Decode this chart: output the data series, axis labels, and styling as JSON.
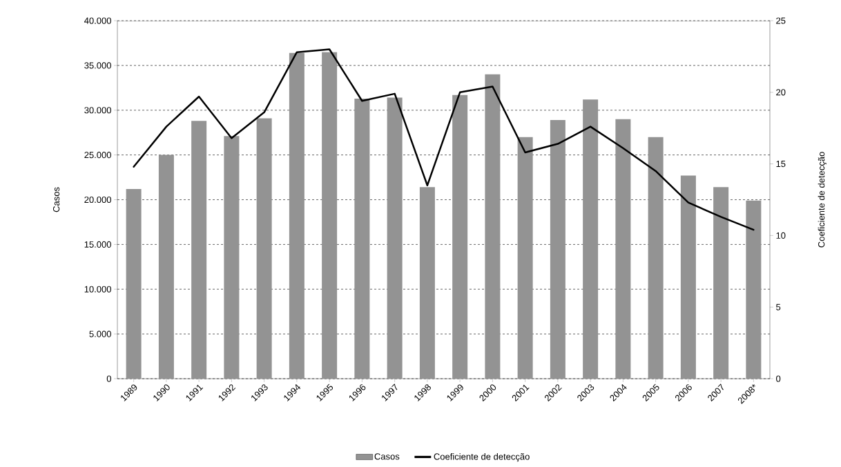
{
  "chart_data": {
    "type": "bar",
    "ylabel": "Casos",
    "y2label": "Coeficiente de detecção",
    "categories": [
      "1989",
      "1990",
      "1991",
      "1992",
      "1993",
      "1994",
      "1995",
      "1996",
      "1997",
      "1998",
      "1999",
      "2000",
      "2001",
      "2002",
      "2003",
      "2004",
      "2005",
      "2006",
      "2007",
      "2008*"
    ],
    "series": [
      {
        "name": "Casos",
        "color": "#939393",
        "values": [
          21200,
          25000,
          28800,
          27100,
          29100,
          36400,
          36500,
          31300,
          31400,
          21400,
          31700,
          34000,
          27000,
          28900,
          31200,
          29000,
          27000,
          22700,
          21400,
          19900
        ]
      },
      {
        "name": "Coeficiente de detecção",
        "type": "line",
        "axis": "y2",
        "color": "#000000",
        "values": [
          14.8,
          17.6,
          19.7,
          16.8,
          18.6,
          22.8,
          23.0,
          19.4,
          19.9,
          13.5,
          20.0,
          20.4,
          15.8,
          16.4,
          17.6,
          16.1,
          14.5,
          12.3,
          11.3,
          10.4
        ]
      }
    ],
    "ylim": [
      0,
      40000
    ],
    "yticks": [
      {
        "value": 0,
        "label": "0"
      },
      {
        "value": 5000,
        "label": "5.000"
      },
      {
        "value": 10000,
        "label": "10.000"
      },
      {
        "value": 15000,
        "label": "15.000"
      },
      {
        "value": 20000,
        "label": "20.000"
      },
      {
        "value": 25000,
        "label": "25.000"
      },
      {
        "value": 30000,
        "label": "30.000"
      },
      {
        "value": 35000,
        "label": "35.000"
      },
      {
        "value": 40000,
        "label": "40.000"
      }
    ],
    "y2lim": [
      0,
      25
    ],
    "y2ticks": [
      0,
      5,
      10,
      15,
      20,
      25
    ],
    "grid": "y",
    "legend": "bottom"
  }
}
